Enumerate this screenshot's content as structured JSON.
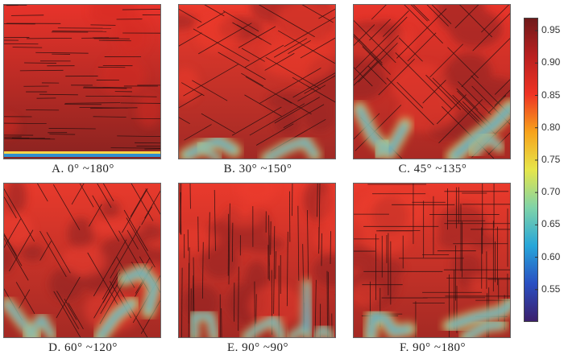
{
  "panels": [
    {
      "label": "A. 0° ~180°"
    },
    {
      "label": "B. 30° ~150°"
    },
    {
      "label": "C. 45° ~135°"
    },
    {
      "label": "D. 60° ~120°"
    },
    {
      "label": "E. 90° ~90°"
    },
    {
      "label": "F. 90° ~180°"
    }
  ],
  "colorbar": {
    "ticks": [
      "0.95",
      "0.90",
      "0.85",
      "0.80",
      "0.75",
      "0.70",
      "0.65",
      "0.60",
      "0.55"
    ],
    "range": [
      0.5,
      0.97
    ],
    "colors": [
      "#3b1f6b",
      "#2a4fc2",
      "#27a6d9",
      "#7fd3a8",
      "#e6e64a",
      "#f7a21b",
      "#ee3324",
      "#b92020",
      "#6e1a1a"
    ]
  }
}
